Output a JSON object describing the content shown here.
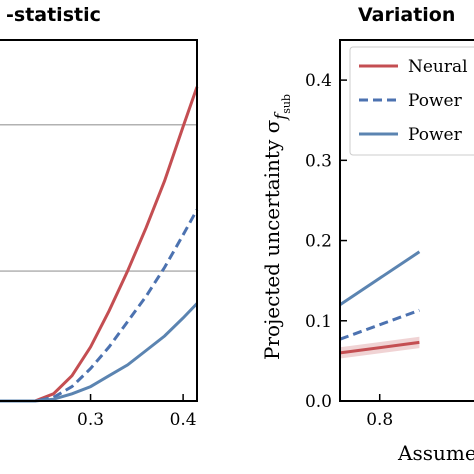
{
  "chart_data": [
    {
      "type": "line",
      "title": "-statistic",
      "xlabel": "",
      "ylabel": "",
      "xlim": [
        0.2,
        0.415
      ],
      "ylim": [
        0,
        1
      ],
      "x_ticks": [
        0.3,
        0.4
      ],
      "x_tick_labels": [
        "0.3",
        "0.4"
      ],
      "hlines": [
        0.36,
        0.765
      ],
      "series": [
        {
          "color": "#c44e52",
          "style": "solid",
          "x": [
            0.2,
            0.22,
            0.24,
            0.26,
            0.28,
            0.3,
            0.32,
            0.34,
            0.36,
            0.38,
            0.4,
            0.415
          ],
          "y": [
            0.0,
            0.0,
            0.0,
            0.02,
            0.07,
            0.15,
            0.25,
            0.36,
            0.48,
            0.61,
            0.76,
            0.87
          ]
        },
        {
          "color": "#4c72b0",
          "style": "dashed",
          "x": [
            0.2,
            0.22,
            0.24,
            0.26,
            0.28,
            0.3,
            0.32,
            0.34,
            0.36,
            0.38,
            0.4,
            0.415
          ],
          "y": [
            0.0,
            0.0,
            0.0,
            0.01,
            0.04,
            0.09,
            0.15,
            0.22,
            0.29,
            0.37,
            0.46,
            0.53
          ]
        },
        {
          "color": "#5b84b1",
          "style": "solid",
          "x": [
            0.2,
            0.22,
            0.24,
            0.26,
            0.28,
            0.3,
            0.32,
            0.34,
            0.36,
            0.38,
            0.4,
            0.415
          ],
          "y": [
            0.0,
            0.0,
            0.0,
            0.005,
            0.02,
            0.04,
            0.07,
            0.1,
            0.14,
            0.18,
            0.23,
            0.27
          ]
        }
      ]
    },
    {
      "type": "line",
      "title": "Variation",
      "xlabel": "Assume",
      "ylabel": "Projected uncertainty σ_{f_sub}",
      "ylabel_main": "Projected uncertainty σ",
      "ylabel_sub": "f",
      "ylabel_subsub": "sub",
      "xlim": [
        0.7,
        1.05
      ],
      "ylim": [
        0.0,
        0.45
      ],
      "x_ticks": [
        0.8
      ],
      "x_tick_labels": [
        "0.8"
      ],
      "y_ticks": [
        0.0,
        0.1,
        0.2,
        0.3,
        0.4
      ],
      "y_tick_labels": [
        "0.0",
        "0.1",
        "0.2",
        "0.3",
        "0.4"
      ],
      "legend_position": "top-right",
      "legend": [
        "Neural",
        "Power",
        "Power"
      ],
      "series": [
        {
          "name": "Neural",
          "color": "#c44e52",
          "style": "solid",
          "band": 0.007,
          "x": [
            0.7,
            0.9
          ],
          "y": [
            0.06,
            0.073
          ]
        },
        {
          "name": "Power",
          "color": "#4c72b0",
          "style": "dashed",
          "x": [
            0.7,
            0.9
          ],
          "y": [
            0.077,
            0.113
          ]
        },
        {
          "name": "Power",
          "color": "#5b84b1",
          "style": "solid",
          "x": [
            0.7,
            0.9
          ],
          "y": [
            0.12,
            0.186
          ]
        }
      ]
    }
  ]
}
